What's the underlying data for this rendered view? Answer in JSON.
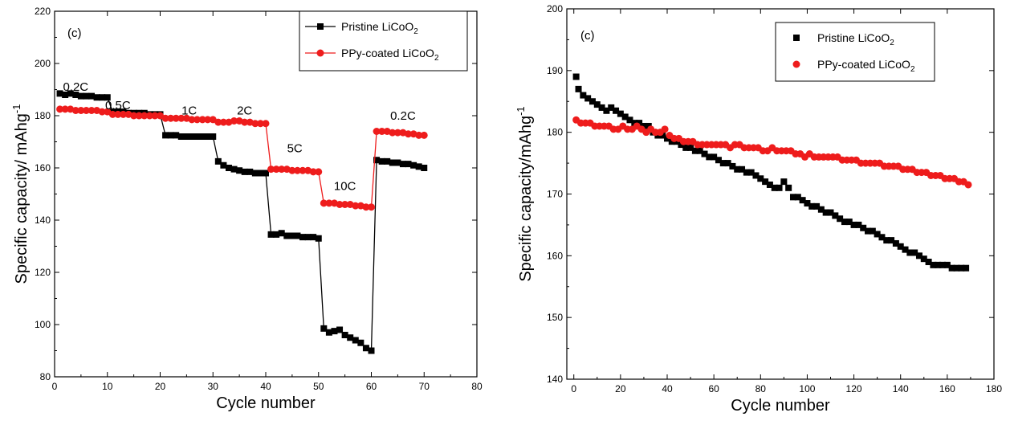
{
  "chart_data": [
    {
      "type": "line",
      "panel_label": "(c)",
      "xlabel": "Cycle number",
      "ylabel": "Specific capacity/ mAhg",
      "ylabel_sup": "-1",
      "xlim": [
        0,
        80
      ],
      "ylim": [
        80,
        220
      ],
      "xticks": [
        0,
        10,
        20,
        30,
        40,
        50,
        60,
        70,
        80
      ],
      "yticks": [
        80,
        100,
        120,
        140,
        160,
        180,
        200,
        220
      ],
      "legend_position": "top-right",
      "series": [
        {
          "name": "Pristine LiCoO",
          "name_sub": "2",
          "color": "#000000",
          "marker": "square",
          "x": [
            1,
            2,
            3,
            4,
            5,
            6,
            7,
            8,
            9,
            10,
            11,
            12,
            13,
            14,
            15,
            16,
            17,
            18,
            19,
            20,
            21,
            22,
            23,
            24,
            25,
            26,
            27,
            28,
            29,
            30,
            31,
            32,
            33,
            34,
            35,
            36,
            37,
            38,
            39,
            40,
            41,
            42,
            43,
            44,
            45,
            46,
            47,
            48,
            49,
            50,
            51,
            52,
            53,
            54,
            55,
            56,
            57,
            58,
            59,
            60,
            61,
            62,
            63,
            64,
            65,
            66,
            67,
            68,
            69,
            70
          ],
          "values": [
            188.5,
            188,
            188.5,
            188,
            187.5,
            187.5,
            187.5,
            187,
            187,
            187,
            181.5,
            181.5,
            181.5,
            181,
            181,
            181,
            181,
            180.5,
            180.5,
            180.5,
            172.5,
            172.5,
            172.5,
            172,
            172,
            172,
            172,
            172,
            172,
            172,
            162.5,
            161,
            160,
            159.5,
            159,
            158.5,
            158.5,
            158,
            158,
            158,
            134.5,
            134.5,
            135,
            134,
            134,
            134,
            133.5,
            133.5,
            133.5,
            133,
            98.5,
            97,
            97.5,
            98,
            96,
            95,
            94,
            93,
            91,
            90,
            163,
            162.5,
            162.5,
            162,
            162,
            161.5,
            161.5,
            161,
            160.5,
            160
          ]
        },
        {
          "name": "PPy-coated LiCoO",
          "name_sub": "2",
          "color": "#ee1c1c",
          "marker": "circle",
          "x": [
            1,
            2,
            3,
            4,
            5,
            6,
            7,
            8,
            9,
            10,
            11,
            12,
            13,
            14,
            15,
            16,
            17,
            18,
            19,
            20,
            21,
            22,
            23,
            24,
            25,
            26,
            27,
            28,
            29,
            30,
            31,
            32,
            33,
            34,
            35,
            36,
            37,
            38,
            39,
            40,
            41,
            42,
            43,
            44,
            45,
            46,
            47,
            48,
            49,
            50,
            51,
            52,
            53,
            54,
            55,
            56,
            57,
            58,
            59,
            60,
            61,
            62,
            63,
            64,
            65,
            66,
            67,
            68,
            69,
            70
          ],
          "values": [
            182.5,
            182.5,
            182.5,
            182,
            182,
            182,
            182,
            182,
            181.5,
            181.5,
            180.5,
            180.5,
            180.5,
            180.5,
            180,
            180,
            180,
            180,
            180,
            180,
            179,
            179,
            179,
            179,
            179,
            178.5,
            178.5,
            178.5,
            178.5,
            178.5,
            177.5,
            177.5,
            177.5,
            178,
            178,
            177.5,
            177.5,
            177,
            177,
            177,
            159.5,
            159.5,
            159.5,
            159.5,
            159,
            159,
            159,
            159,
            158.5,
            158.5,
            146.5,
            146.5,
            146.5,
            146,
            146,
            146,
            145.5,
            145.5,
            145,
            145,
            174,
            174,
            174,
            173.5,
            173.5,
            173.5,
            173,
            173,
            172.5,
            172.5
          ]
        }
      ],
      "annotations": [
        {
          "text": "0.2C",
          "x": 4,
          "y": 189.5
        },
        {
          "text": "0.5C",
          "x": 12,
          "y": 182.5
        },
        {
          "text": "1C",
          "x": 25.5,
          "y": 180.5
        },
        {
          "text": "2C",
          "x": 36,
          "y": 180.5
        },
        {
          "text": "5C",
          "x": 45.5,
          "y": 166
        },
        {
          "text": "10C",
          "x": 55,
          "y": 151.5
        },
        {
          "text": "0.2C",
          "x": 66,
          "y": 178.5
        }
      ]
    },
    {
      "type": "scatter",
      "panel_label": "(c)",
      "xlabel": "Cycle number",
      "ylabel": "Specific capacity/mAhg",
      "ylabel_sup": "-1",
      "xlim": [
        -3,
        180
      ],
      "ylim": [
        140,
        200
      ],
      "xticks": [
        0,
        20,
        40,
        60,
        80,
        100,
        120,
        140,
        160,
        180
      ],
      "yticks": [
        140,
        150,
        160,
        170,
        180,
        190,
        200
      ],
      "legend_position": "top-right",
      "series": [
        {
          "name": "Pristine LiCoO",
          "name_sub": "2",
          "color": "#000000",
          "marker": "square",
          "x": [
            1,
            2,
            4,
            6,
            8,
            10,
            12,
            14,
            16,
            18,
            20,
            22,
            24,
            26,
            28,
            30,
            32,
            34,
            36,
            38,
            40,
            42,
            44,
            46,
            48,
            50,
            52,
            54,
            56,
            58,
            60,
            62,
            64,
            66,
            68,
            70,
            72,
            74,
            76,
            78,
            80,
            82,
            84,
            86,
            88,
            90,
            92,
            94,
            96,
            98,
            100,
            102,
            104,
            106,
            108,
            110,
            112,
            114,
            116,
            118,
            120,
            122,
            124,
            126,
            128,
            130,
            132,
            134,
            136,
            138,
            140,
            142,
            144,
            146,
            148,
            150,
            152,
            154,
            156,
            158,
            160,
            162,
            164,
            166,
            168
          ],
          "values": [
            189,
            187,
            186,
            185.5,
            185,
            184.5,
            184,
            183.5,
            184,
            183.5,
            183,
            182.5,
            182,
            181.5,
            181.5,
            181,
            181,
            180,
            179.5,
            179.5,
            179,
            178.5,
            178.5,
            178,
            177.5,
            177.5,
            177,
            177,
            176.5,
            176,
            176,
            175.5,
            175,
            175,
            174.5,
            174,
            174,
            173.5,
            173.5,
            173,
            172.5,
            172,
            171.5,
            171,
            171,
            172,
            171,
            169.5,
            169.5,
            169,
            168.5,
            168,
            168,
            167.5,
            167,
            167,
            166.5,
            166,
            165.5,
            165.5,
            165,
            165,
            164.5,
            164,
            164,
            163.5,
            163,
            162.5,
            162.5,
            162,
            161.5,
            161,
            160.5,
            160.5,
            160,
            159.5,
            159,
            158.5,
            158.5,
            158.5,
            158.5,
            158,
            158,
            158,
            158
          ]
        },
        {
          "name": "PPy-coated LiCoO",
          "name_sub": "2",
          "color": "#ee1c1c",
          "marker": "circle",
          "x": [
            1,
            3,
            5,
            7,
            9,
            11,
            13,
            15,
            17,
            19,
            21,
            23,
            25,
            27,
            29,
            31,
            33,
            35,
            37,
            39,
            41,
            43,
            45,
            47,
            49,
            51,
            53,
            55,
            57,
            59,
            61,
            63,
            65,
            67,
            69,
            71,
            73,
            75,
            77,
            79,
            81,
            83,
            85,
            87,
            89,
            91,
            93,
            95,
            97,
            99,
            101,
            103,
            105,
            107,
            109,
            111,
            113,
            115,
            117,
            119,
            121,
            123,
            125,
            127,
            129,
            131,
            133,
            135,
            137,
            139,
            141,
            143,
            145,
            147,
            149,
            151,
            153,
            155,
            157,
            159,
            161,
            163,
            165,
            167,
            169
          ],
          "values": [
            182,
            181.5,
            181.5,
            181.5,
            181,
            181,
            181,
            181,
            180.5,
            180.5,
            181,
            180.5,
            180.5,
            181,
            180.5,
            180,
            180.5,
            180,
            180,
            180.5,
            179.5,
            179,
            179,
            178.5,
            178.5,
            178.5,
            178,
            178,
            178,
            178,
            178,
            178,
            178,
            177.5,
            178,
            178,
            177.5,
            177.5,
            177.5,
            177.5,
            177,
            177,
            177.5,
            177,
            177,
            177,
            177,
            176.5,
            176.5,
            176,
            176.5,
            176,
            176,
            176,
            176,
            176,
            176,
            175.5,
            175.5,
            175.5,
            175.5,
            175,
            175,
            175,
            175,
            175,
            174.5,
            174.5,
            174.5,
            174.5,
            174,
            174,
            174,
            173.5,
            173.5,
            173.5,
            173,
            173,
            173,
            172.5,
            172.5,
            172.5,
            172,
            172,
            171.5
          ]
        }
      ]
    }
  ]
}
